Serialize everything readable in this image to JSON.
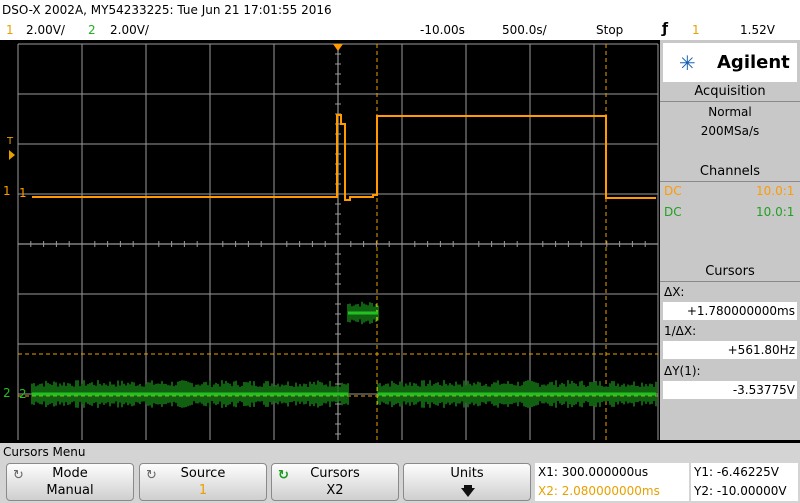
{
  "header": {
    "model_info": "DSO-X 2002A, MY54233225: Tue Jun 21 17:01:55 2016",
    "ch1_num": "1",
    "ch1_scale": "2.00V/",
    "ch2_num": "2",
    "ch2_scale": "2.00V/",
    "delay": "-10.00s",
    "timebase": "500.0s/",
    "run_state": "Stop",
    "trigger_icon": "trigger-rising-edge-icon",
    "trigger_source": "1",
    "trigger_level": "1.52V"
  },
  "markers": {
    "trigger_level_marker": "T",
    "ch1_marker": "1",
    "ch2_marker": "2"
  },
  "colors": {
    "ch1": "#ff9a00",
    "ch2": "#22c122",
    "grid": "#ffffff",
    "background": "#000000",
    "cursor": "#e8a000"
  },
  "sidebar": {
    "brand": "Agilent",
    "brand_icon": "agilent-spark-logo-icon",
    "acquisition": {
      "title": "Acquisition",
      "mode": "Normal",
      "rate": "200MSa/s"
    },
    "channels": {
      "title": "Channels",
      "rows": [
        {
          "coupling": "DC",
          "probe": "10.0:1"
        },
        {
          "coupling": "DC",
          "probe": "10.0:1"
        }
      ]
    },
    "cursors": {
      "title": "Cursors",
      "dx_label": "ΔX:",
      "dx_value": "+1.780000000ms",
      "inv_dx_label": "1/ΔX:",
      "inv_dx_value": "+561.80Hz",
      "dy_label": "ΔY(1):",
      "dy_value": "-3.53775V"
    }
  },
  "footer": {
    "menu_title": "Cursors Menu",
    "softkeys": [
      {
        "label": "Mode",
        "value": "Manual",
        "icon": "rotary-knob-icon"
      },
      {
        "label": "Source",
        "value": "1",
        "icon": "rotary-knob-icon"
      },
      {
        "label": "Cursors",
        "value": "X2",
        "icon": "rotary-knob-active-icon"
      },
      {
        "label": "Units",
        "value": "",
        "icon": "arrow-down-icon"
      }
    ],
    "readouts": {
      "x1": "X1: 300.000000us",
      "x2": "X2: 2.080000000ms",
      "y1": "Y1: -6.46225V",
      "y2": "Y2: -10.00000V"
    }
  }
}
